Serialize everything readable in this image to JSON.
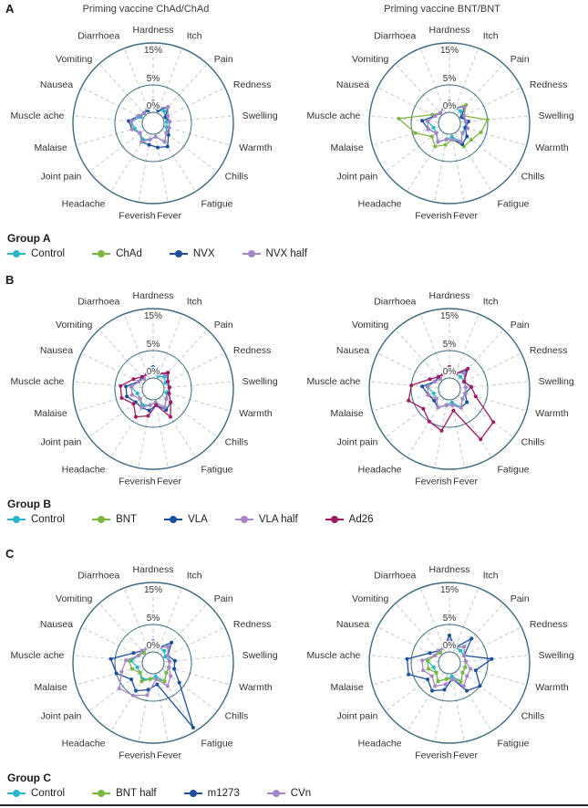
{
  "colors": {
    "ring": "#40697e",
    "spoke": "#c4cbd0",
    "label": "#333333",
    "control": "#2ab7c9",
    "green": "#7db742",
    "blue": "#1d4f9e",
    "purple": "#a486c9",
    "magenta": "#9e1b62"
  },
  "panels": [
    {
      "letter": "A",
      "legend_title": "Group A",
      "items": [
        {
          "label": "Control",
          "color": "#2ab7c9"
        },
        {
          "label": "ChAd",
          "color": "#7db742"
        },
        {
          "label": "NVX",
          "color": "#1d4f9e"
        },
        {
          "label": "NVX half",
          "color": "#a486c9"
        }
      ]
    },
    {
      "letter": "B",
      "legend_title": "Group B",
      "items": [
        {
          "label": "Control",
          "color": "#2ab7c9"
        },
        {
          "label": "BNT",
          "color": "#7db742"
        },
        {
          "label": "VLA",
          "color": "#1d4f9e"
        },
        {
          "label": "VLA half",
          "color": "#a486c9"
        },
        {
          "label": "Ad26",
          "color": "#9e1b62"
        }
      ]
    },
    {
      "letter": "C",
      "legend_title": "Group C",
      "items": [
        {
          "label": "Control",
          "color": "#2ab7c9"
        },
        {
          "label": "BNT half",
          "color": "#7db742"
        },
        {
          "label": "m1273",
          "color": "#1d4f9e"
        },
        {
          "label": "CVn",
          "color": "#a486c9"
        }
      ]
    }
  ],
  "chart_data": {
    "type": "radar",
    "categories": [
      "Hardness",
      "Itch",
      "Pain",
      "Redness",
      "Swelling",
      "Warmth",
      "Chills",
      "Fatigue",
      "Fever",
      "Feverish",
      "Headache",
      "Joint pain",
      "Malaise",
      "Muscle ache",
      "Nausea",
      "Vomiting",
      "Diarrhoea"
    ],
    "radial_ticks": [
      "0%",
      "5%",
      "15%"
    ],
    "scale": {
      "min": 0,
      "mid": 5,
      "max": 15
    },
    "charts": [
      {
        "panel": "A",
        "title": "Priming vaccine ChAd/ChAd",
        "series": [
          {
            "name": "Control",
            "color": "#2ab7c9",
            "values": [
              1,
              0.5,
              1,
              0.5,
              0.5,
              0.5,
              1,
              2,
              0.5,
              1,
              1.5,
              1,
              1.5,
              2,
              0.5,
              0.5,
              1
            ]
          },
          {
            "name": "ChAd",
            "color": "#7db742",
            "values": [
              1.5,
              1,
              2,
              0.5,
              1,
              1,
              1,
              2,
              0.5,
              1,
              2,
              1,
              2,
              2,
              1,
              0.5,
              1
            ]
          },
          {
            "name": "NVX",
            "color": "#1d4f9e",
            "values": [
              1,
              0.5,
              2,
              0.5,
              1,
              1,
              1.5,
              3,
              2.5,
              2,
              2,
              1,
              2,
              2.5,
              1,
              0.5,
              0.5
            ]
          },
          {
            "name": "NVX half",
            "color": "#a486c9",
            "values": [
              2,
              1,
              2,
              1,
              1,
              1,
              1,
              2,
              0.5,
              1,
              2,
              1,
              2,
              2,
              1,
              0.5,
              1
            ]
          }
        ]
      },
      {
        "panel": "A",
        "title": "Priming vaccine BNT/BNT",
        "series": [
          {
            "name": "Control",
            "color": "#2ab7c9",
            "values": [
              1,
              1,
              1,
              0.5,
              1,
              1,
              1,
              2,
              0.5,
              1,
              2,
              1,
              1,
              2,
              1,
              0.5,
              1
            ]
          },
          {
            "name": "ChAd",
            "color": "#7db742",
            "values": [
              2,
              1,
              2.5,
              1,
              5,
              4,
              3,
              3,
              1,
              2,
              3,
              2,
              4.5,
              8,
              1.5,
              0.5,
              1
            ]
          },
          {
            "name": "NVX",
            "color": "#1d4f9e",
            "values": [
              1.5,
              1,
              2,
              0.5,
              1.5,
              1,
              2,
              2.5,
              1,
              1,
              2,
              1,
              2,
              3,
              1,
              0.5,
              1
            ]
          },
          {
            "name": "NVX half",
            "color": "#a486c9",
            "values": [
              2,
              1,
              2,
              1,
              1,
              1.5,
              1,
              2,
              1,
              1,
              2,
              1,
              2,
              2,
              1,
              0.5,
              1
            ]
          }
        ]
      },
      {
        "panel": "B",
        "title": "",
        "series": [
          {
            "name": "Control",
            "color": "#2ab7c9",
            "values": [
              1,
              0.5,
              1,
              0.5,
              1,
              0.5,
              1,
              2,
              0.5,
              1,
              1.5,
              1,
              1,
              2,
              1,
              0.5,
              1
            ]
          },
          {
            "name": "BNT",
            "color": "#7db742",
            "values": [
              1.5,
              1,
              2,
              1,
              1,
              1,
              1,
              2,
              0.5,
              1,
              2,
              1,
              2,
              2,
              1,
              0.5,
              1
            ]
          },
          {
            "name": "VLA",
            "color": "#1d4f9e",
            "values": [
              2,
              1,
              2,
              1,
              1,
              1,
              2,
              2.5,
              1,
              2,
              2,
              2,
              3,
              3,
              1,
              1,
              1
            ]
          },
          {
            "name": "VLA half",
            "color": "#a486c9",
            "values": [
              1,
              1,
              1.5,
              1,
              1,
              1,
              1,
              2,
              0.5,
              1,
              2,
              1,
              2,
              2,
              1,
              0.5,
              1
            ]
          },
          {
            "name": "Ad26",
            "color": "#9e1b62",
            "values": [
              1.5,
              1,
              2,
              1,
              1,
              1,
              2,
              4,
              1,
              3,
              4,
              2.5,
              4,
              4,
              2,
              1,
              1
            ]
          }
        ]
      },
      {
        "panel": "B",
        "title": "",
        "series": [
          {
            "name": "Control",
            "color": "#2ab7c9",
            "values": [
              1,
              1,
              1,
              1,
              1,
              1,
              1,
              2,
              0.5,
              1,
              2,
              1,
              1,
              2,
              1,
              0.5,
              1
            ]
          },
          {
            "name": "BNT",
            "color": "#7db742",
            "values": [
              2,
              1,
              2,
              1,
              1,
              1,
              1,
              2,
              1,
              1,
              2,
              1,
              2,
              2,
              1,
              0.5,
              1
            ]
          },
          {
            "name": "VLA",
            "color": "#1d4f9e",
            "values": [
              2,
              1,
              2.5,
              1,
              2,
              1,
              2,
              2,
              1,
              1,
              2,
              1.5,
              2,
              3,
              1,
              1,
              1
            ]
          },
          {
            "name": "VLA half",
            "color": "#a486c9",
            "values": [
              1,
              1,
              2,
              1,
              1,
              1,
              1,
              2,
              1,
              1,
              2,
              1,
              2,
              2,
              1,
              0.5,
              1
            ]
          },
          {
            "name": "Ad26",
            "color": "#9e1b62",
            "values": [
              2,
              1,
              3,
              1,
              2,
              3,
              9,
              10,
              2,
              6,
              5,
              4,
              6,
              5,
              2,
              1,
              1
            ]
          }
        ]
      },
      {
        "panel": "C",
        "title": "",
        "series": [
          {
            "name": "Control",
            "color": "#2ab7c9",
            "values": [
              1,
              1,
              1,
              0.5,
              1,
              1,
              1,
              2,
              0.5,
              1,
              1.5,
              1,
              1,
              2,
              1,
              0.5,
              1
            ]
          },
          {
            "name": "BNT half",
            "color": "#7db742",
            "values": [
              1,
              1,
              2,
              1,
              1,
              1,
              1,
              2,
              1,
              1,
              2,
              1,
              2,
              2.5,
              1,
              0.5,
              1
            ]
          },
          {
            "name": "m1273",
            "color": "#1d4f9e",
            "values": [
              2,
              1,
              3,
              1,
              2,
              2,
              4,
              14,
              2,
              3,
              4,
              3,
              5,
              6,
              2,
              1,
              1
            ]
          },
          {
            "name": "CVn",
            "color": "#a486c9",
            "values": [
              2,
              1,
              2,
              1,
              1,
              1,
              2,
              3,
              1,
              4,
              5,
              6,
              4,
              3,
              1,
              1,
              1
            ]
          }
        ]
      },
      {
        "panel": "C",
        "title": "",
        "series": [
          {
            "name": "Control",
            "color": "#2ab7c9",
            "values": [
              1,
              1,
              1,
              1,
              1,
              1,
              1,
              2,
              0.5,
              1,
              2,
              1,
              1,
              2,
              1,
              0.5,
              1
            ]
          },
          {
            "name": "BNT half",
            "color": "#7db742",
            "values": [
              1,
              1,
              2,
              1,
              1,
              1,
              1,
              2,
              1,
              1,
              2,
              1,
              2,
              2,
              1,
              0.5,
              1
            ]
          },
          {
            "name": "m1273",
            "color": "#1d4f9e",
            "values": [
              3,
              1,
              4,
              1,
              6,
              3,
              5,
              4,
              1,
              3,
              4,
              3,
              6,
              6,
              2,
              1,
              1
            ]
          },
          {
            "name": "CVn",
            "color": "#a486c9",
            "values": [
              2,
              1,
              2,
              1,
              1,
              2,
              2,
              3,
              1,
              2,
              3,
              2,
              3,
              3,
              1,
              1,
              1
            ]
          }
        ]
      }
    ]
  }
}
